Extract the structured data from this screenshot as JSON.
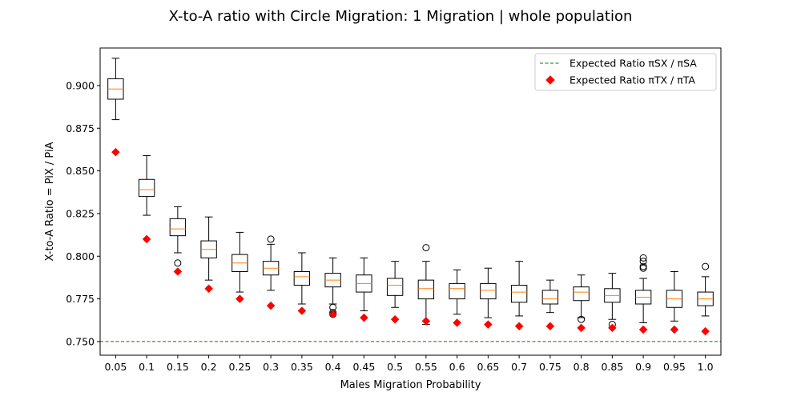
{
  "chart_data": {
    "type": "boxplot",
    "title": "X-to-A ratio with Circle Migration: 1 Migration | whole population",
    "xlabel": "Males Migration Probability",
    "ylabel": "X-to-A Ratio = PiX / PiA",
    "ylim": [
      0.742,
      0.922
    ],
    "yticks": [
      "0.750",
      "0.775",
      "0.800",
      "0.825",
      "0.850",
      "0.875",
      "0.900"
    ],
    "categories": [
      "0.05",
      "0.1",
      "0.15",
      "0.2",
      "0.25",
      "0.3",
      "0.35",
      "0.4",
      "0.45",
      "0.5",
      "0.55",
      "0.6",
      "0.65",
      "0.7",
      "0.75",
      "0.8",
      "0.85",
      "0.9",
      "0.95",
      "1.0"
    ],
    "boxes": [
      {
        "whislo": 0.88,
        "q1": 0.892,
        "med": 0.898,
        "q3": 0.904,
        "whishi": 0.916,
        "fliers": []
      },
      {
        "whislo": 0.824,
        "q1": 0.835,
        "med": 0.839,
        "q3": 0.845,
        "whishi": 0.859,
        "fliers": []
      },
      {
        "whislo": 0.802,
        "q1": 0.812,
        "med": 0.816,
        "q3": 0.822,
        "whishi": 0.829,
        "fliers": [
          0.796
        ]
      },
      {
        "whislo": 0.786,
        "q1": 0.799,
        "med": 0.804,
        "q3": 0.809,
        "whishi": 0.823,
        "fliers": []
      },
      {
        "whislo": 0.779,
        "q1": 0.791,
        "med": 0.796,
        "q3": 0.801,
        "whishi": 0.814,
        "fliers": []
      },
      {
        "whislo": 0.78,
        "q1": 0.789,
        "med": 0.793,
        "q3": 0.797,
        "whishi": 0.807,
        "fliers": [
          0.81
        ]
      },
      {
        "whislo": 0.772,
        "q1": 0.783,
        "med": 0.788,
        "q3": 0.791,
        "whishi": 0.802,
        "fliers": []
      },
      {
        "whislo": 0.772,
        "q1": 0.782,
        "med": 0.786,
        "q3": 0.79,
        "whishi": 0.799,
        "fliers": [
          0.77,
          0.767,
          0.766
        ]
      },
      {
        "whislo": 0.768,
        "q1": 0.779,
        "med": 0.784,
        "q3": 0.789,
        "whishi": 0.799,
        "fliers": []
      },
      {
        "whislo": 0.77,
        "q1": 0.777,
        "med": 0.783,
        "q3": 0.787,
        "whishi": 0.797,
        "fliers": []
      },
      {
        "whislo": 0.76,
        "q1": 0.775,
        "med": 0.781,
        "q3": 0.786,
        "whishi": 0.797,
        "fliers": [
          0.805
        ]
      },
      {
        "whislo": 0.766,
        "q1": 0.775,
        "med": 0.781,
        "q3": 0.784,
        "whishi": 0.792,
        "fliers": []
      },
      {
        "whislo": 0.764,
        "q1": 0.775,
        "med": 0.78,
        "q3": 0.784,
        "whishi": 0.793,
        "fliers": []
      },
      {
        "whislo": 0.765,
        "q1": 0.773,
        "med": 0.779,
        "q3": 0.783,
        "whishi": 0.797,
        "fliers": []
      },
      {
        "whislo": 0.767,
        "q1": 0.772,
        "med": 0.775,
        "q3": 0.78,
        "whishi": 0.786,
        "fliers": []
      },
      {
        "whislo": 0.764,
        "q1": 0.774,
        "med": 0.779,
        "q3": 0.782,
        "whishi": 0.789,
        "fliers": [
          0.763
        ]
      },
      {
        "whislo": 0.763,
        "q1": 0.773,
        "med": 0.777,
        "q3": 0.781,
        "whishi": 0.79,
        "fliers": [
          0.76
        ]
      },
      {
        "whislo": 0.761,
        "q1": 0.772,
        "med": 0.776,
        "q3": 0.78,
        "whishi": 0.787,
        "fliers": [
          0.799,
          0.797,
          0.794,
          0.793
        ]
      },
      {
        "whislo": 0.762,
        "q1": 0.77,
        "med": 0.775,
        "q3": 0.78,
        "whishi": 0.791,
        "fliers": []
      },
      {
        "whislo": 0.765,
        "q1": 0.771,
        "med": 0.775,
        "q3": 0.779,
        "whishi": 0.788,
        "fliers": [
          0.794
        ]
      }
    ],
    "expected_tx_ta": [
      0.861,
      0.81,
      0.791,
      0.781,
      0.775,
      0.771,
      0.768,
      0.766,
      0.764,
      0.763,
      0.762,
      0.761,
      0.76,
      0.759,
      0.759,
      0.758,
      0.758,
      0.757,
      0.757,
      0.756
    ],
    "expected_sx_sa": 0.75,
    "legend": {
      "placement": "top-right",
      "entries": [
        {
          "label": "Expected Ratio πSX / πSA",
          "color": "#008000",
          "style": "dashed-line"
        },
        {
          "label": "Expected Ratio πTX / πTA",
          "color": "#ff0000",
          "style": "diamond-marker"
        }
      ]
    },
    "colors": {
      "box": "#000000",
      "median": "#ff7f0e",
      "marker": "#ff0000",
      "reference_line": "#008000"
    }
  }
}
